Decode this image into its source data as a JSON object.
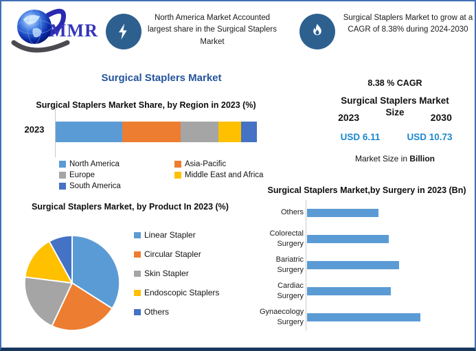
{
  "colors": {
    "frame_border": "#3F6FB5",
    "frame_bottom": "#17375E",
    "icon_circle": "#2D608F",
    "title_blue": "#24549C",
    "usd_value_blue": "#1B87D0",
    "logo_text_blue": "#3535BB",
    "bar_blue": "#5B9BD5"
  },
  "header": {
    "logo_text": "MMR",
    "callouts": [
      {
        "icon": "lightning-icon",
        "text": "North America Market Accounted largest share in the Surgical Staplers Market"
      },
      {
        "icon": "flame-icon",
        "text": "Surgical Staplers Market to grow at a CAGR of 8.38% during 2024-2030"
      }
    ]
  },
  "main_title": "Surgical Staplers Market",
  "market_size_panel": {
    "cagr": "8.38 % CAGR",
    "title_line1": "Surgical Staplers Market",
    "title_line2": "Size",
    "year_left": "2023",
    "year_right": "2030",
    "value_left": "USD 6.11",
    "value_right": "USD 10.73",
    "footnote_prefix": "Market Size in ",
    "footnote_bold": "Billion"
  },
  "chart_data": [
    {
      "id": "region_share",
      "type": "bar",
      "subtype": "stacked-horizontal",
      "title": "Surgical Staplers Market Share, by Region in 2023 (%)",
      "categories": [
        "2023"
      ],
      "series": [
        {
          "name": "North America",
          "color": "#5B9BD5",
          "values": [
            33
          ]
        },
        {
          "name": "Asia-Pacific",
          "color": "#ED7D31",
          "values": [
            29
          ]
        },
        {
          "name": "Europe",
          "color": "#A5A5A5",
          "values": [
            19
          ]
        },
        {
          "name": "Middle East and Africa",
          "color": "#FFC000",
          "values": [
            11
          ]
        },
        {
          "name": "South America",
          "color": "#4472C4",
          "values": [
            8
          ]
        }
      ],
      "xlim": [
        0,
        100
      ],
      "grid": false,
      "legend_position": "bottom"
    },
    {
      "id": "product_share_pie",
      "type": "pie",
      "title": "Surgical Staplers Market, by Product In 2023 (%)",
      "labels": [
        "Linear Stapler",
        "Circular Stapler",
        "Skin Stapler",
        "Endoscopic Staplers",
        "Others"
      ],
      "values": [
        34,
        23,
        20,
        15,
        8
      ],
      "colors": [
        "#5B9BD5",
        "#ED7D31",
        "#A5A5A5",
        "#FFC000",
        "#4472C4"
      ],
      "start_angle_deg": 0,
      "direction": "clockwise",
      "legend_position": "right"
    },
    {
      "id": "surgery_bar",
      "type": "bar",
      "subtype": "horizontal",
      "title": "Surgical Staplers Market,by Surgery in 2023 (Bn)",
      "categories": [
        "Others",
        "Colorectal Surgery",
        "Bariatric Surgery",
        "Cardiac Surgery",
        "Gynaecology Surgery"
      ],
      "categories_display": [
        "Others",
        "Colorectal\nSurgery",
        "Bariatric Surgery",
        "Cardiac Surgery",
        "Gynaecology\nSurgery"
      ],
      "values": [
        0.63,
        0.72,
        0.81,
        0.74,
        1.0
      ],
      "values_are_relative": true,
      "bar_color": "#5B9BD5",
      "xlim": [
        0,
        1.47
      ],
      "grid": false,
      "legend_position": "none"
    }
  ]
}
